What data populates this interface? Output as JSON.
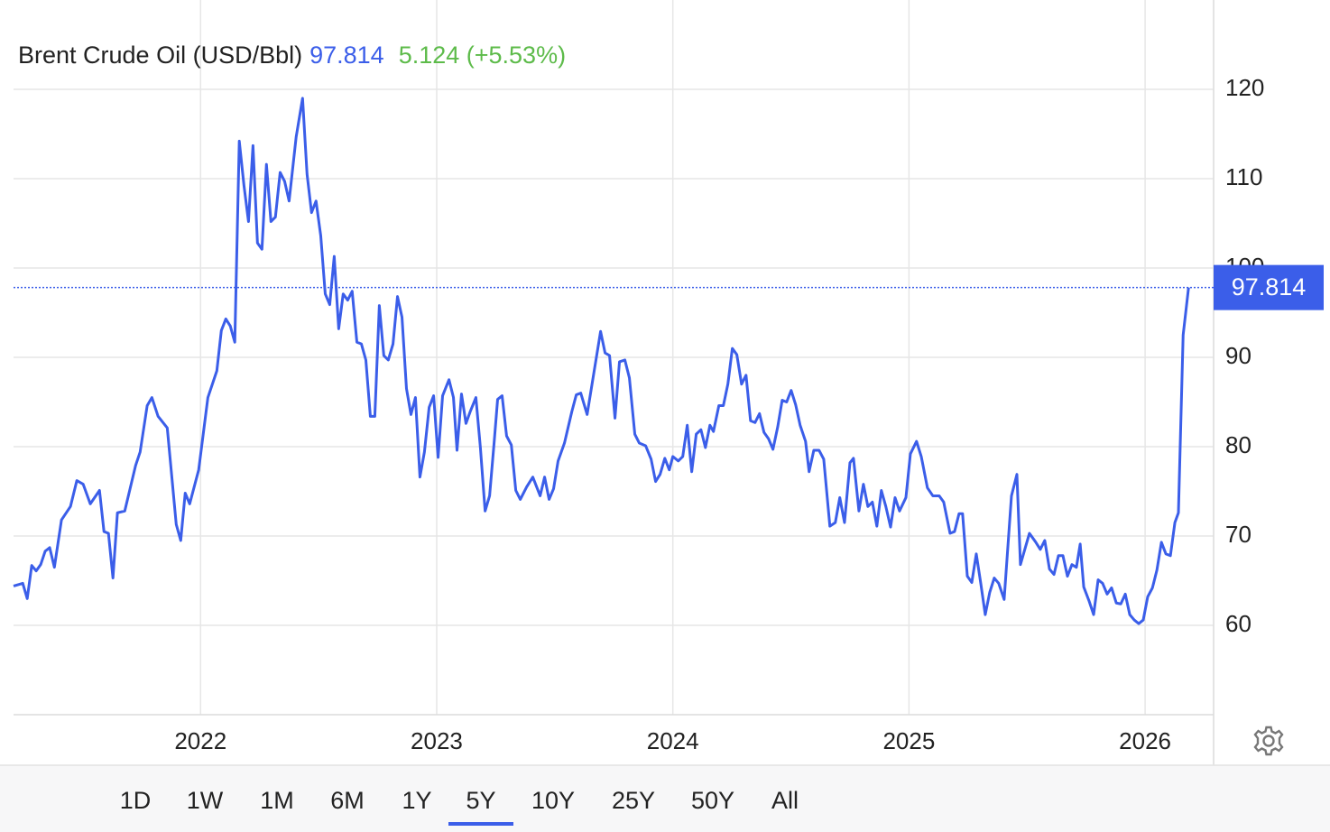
{
  "chart_data": {
    "type": "line",
    "title": "Brent Crude Oil (USD/Bbl)",
    "last_value": 97.814,
    "change": "5.124 (+5.53%)",
    "color": "#3b5ee9",
    "change_color": "#5dbb4a",
    "grid": true,
    "xlim": [
      2021.208,
      2026.29
    ],
    "xticks": [
      2022,
      2023,
      2024,
      2025,
      2026
    ],
    "ylim": [
      50,
      130
    ],
    "yticks": [
      60,
      70,
      80,
      90,
      100,
      110,
      120
    ],
    "ranges": [
      "1D",
      "1W",
      "1M",
      "6M",
      "1Y",
      "5Y",
      "10Y",
      "25Y",
      "50Y",
      "All"
    ],
    "selected_range": "5Y",
    "x": [
      2021.208,
      2021.247,
      2021.266,
      2021.285,
      2021.304,
      2021.323,
      2021.342,
      2021.361,
      2021.381,
      2021.411,
      2021.449,
      2021.476,
      2021.503,
      2021.533,
      2021.572,
      2021.591,
      2021.61,
      2021.629,
      2021.648,
      2021.679,
      2021.725,
      2021.744,
      2021.774,
      2021.794,
      2021.82,
      2021.859,
      2021.897,
      2021.916,
      2021.935,
      2021.954,
      2021.992,
      2022.031,
      2022.069,
      2022.088,
      2022.107,
      2022.126,
      2022.145,
      2022.164,
      2022.184,
      2022.203,
      2022.222,
      2022.241,
      2022.26,
      2022.279,
      2022.298,
      2022.317,
      2022.337,
      2022.356,
      2022.375,
      2022.405,
      2022.432,
      2022.451,
      2022.47,
      2022.489,
      2022.509,
      2022.528,
      2022.547,
      2022.566,
      2022.585,
      2022.604,
      2022.623,
      2022.642,
      2022.662,
      2022.681,
      2022.7,
      2022.719,
      2022.738,
      2022.757,
      2022.776,
      2022.795,
      2022.815,
      2022.834,
      2022.853,
      2022.872,
      2022.891,
      2022.91,
      2022.929,
      2022.948,
      2022.968,
      2022.987,
      2023.006,
      2023.025,
      2023.052,
      2023.071,
      2023.086,
      2023.105,
      2023.124,
      2023.143,
      2023.166,
      2023.185,
      2023.205,
      2023.224,
      2023.243,
      2023.258,
      2023.277,
      2023.296,
      2023.316,
      2023.335,
      2023.354,
      2023.381,
      2023.407,
      2023.438,
      2023.457,
      2023.476,
      2023.495,
      2023.514,
      2023.541,
      2023.572,
      2023.591,
      2023.61,
      2023.637,
      2023.667,
      2023.694,
      2023.713,
      2023.732,
      2023.755,
      2023.774,
      2023.797,
      2023.816,
      2023.839,
      2023.858,
      2023.885,
      2023.908,
      2023.927,
      2023.946,
      2023.966,
      2023.985,
      2024.0,
      2024.023,
      2024.042,
      2024.061,
      2024.08,
      2024.099,
      2024.119,
      2024.138,
      2024.157,
      2024.172,
      2024.195,
      2024.214,
      2024.233,
      2024.252,
      2024.271,
      2024.291,
      2024.31,
      2024.329,
      2024.348,
      2024.367,
      2024.386,
      2024.405,
      2024.424,
      2024.444,
      2024.463,
      2024.482,
      2024.501,
      2024.52,
      2024.539,
      2024.562,
      2024.577,
      2024.597,
      2024.619,
      2024.639,
      2024.665,
      2024.688,
      2024.707,
      2024.727,
      2024.75,
      2024.765,
      2024.788,
      2024.807,
      2024.826,
      2024.845,
      2024.864,
      2024.883,
      2024.902,
      2024.922,
      2024.941,
      2024.96,
      2024.987,
      2025.006,
      2025.032,
      2025.052,
      2025.078,
      2025.101,
      2025.128,
      2025.147,
      2025.174,
      2025.193,
      2025.212,
      2025.227,
      2025.247,
      2025.266,
      2025.285,
      2025.304,
      2025.323,
      2025.342,
      2025.361,
      2025.38,
      2025.403,
      2025.434,
      2025.457,
      2025.472,
      2025.51,
      2025.537,
      2025.556,
      2025.575,
      2025.595,
      2025.614,
      2025.633,
      2025.652,
      2025.671,
      2025.69,
      2025.709,
      2025.725,
      2025.74,
      2025.763,
      2025.782,
      2025.801,
      2025.82,
      2025.839,
      2025.858,
      2025.878,
      2025.897,
      2025.916,
      2025.935,
      2025.954,
      2025.973,
      2025.992,
      2026.011,
      2026.031,
      2026.05,
      2026.069,
      2026.088,
      2026.107,
      2026.126,
      2026.141,
      2026.161,
      2026.184
    ],
    "values": [
      64.4,
      64.7,
      63.0,
      66.7,
      66.1,
      66.8,
      68.3,
      68.7,
      66.5,
      71.8,
      73.3,
      76.2,
      75.8,
      73.6,
      75.1,
      70.5,
      70.3,
      65.3,
      72.6,
      72.8,
      77.9,
      79.4,
      84.6,
      85.5,
      83.4,
      82.1,
      71.3,
      69.5,
      74.8,
      73.6,
      77.4,
      85.5,
      88.5,
      93.0,
      94.3,
      93.5,
      91.7,
      114.2,
      109.2,
      105.2,
      113.7,
      102.8,
      102.1,
      111.6,
      105.2,
      105.7,
      110.7,
      109.7,
      107.5,
      114.7,
      119.0,
      110.5,
      106.2,
      107.5,
      103.6,
      97.1,
      95.9,
      101.3,
      93.2,
      97.1,
      96.4,
      97.4,
      91.7,
      91.5,
      89.7,
      83.4,
      83.4,
      95.8,
      90.2,
      89.7,
      91.5,
      96.8,
      94.5,
      86.5,
      83.6,
      85.5,
      76.6,
      79.4,
      84.4,
      85.7,
      78.8,
      85.7,
      87.5,
      85.5,
      79.6,
      85.9,
      82.6,
      84.0,
      85.5,
      79.9,
      72.8,
      74.5,
      80.4,
      85.3,
      85.7,
      81.2,
      80.2,
      75.1,
      74.1,
      75.5,
      76.6,
      74.5,
      76.6,
      74.1,
      75.3,
      78.4,
      80.4,
      83.9,
      85.8,
      86.0,
      83.6,
      88.5,
      92.9,
      90.5,
      90.2,
      83.2,
      89.5,
      89.7,
      87.7,
      81.4,
      80.4,
      80.1,
      78.6,
      76.1,
      76.9,
      78.7,
      77.4,
      78.9,
      78.4,
      78.9,
      82.4,
      77.2,
      81.4,
      81.9,
      79.9,
      82.4,
      81.7,
      84.6,
      84.6,
      87.0,
      91.0,
      90.3,
      87.0,
      88.0,
      82.9,
      82.7,
      83.7,
      81.6,
      80.9,
      79.7,
      82.2,
      85.2,
      85.0,
      86.3,
      84.7,
      82.4,
      80.6,
      77.2,
      79.6,
      79.6,
      78.6,
      71.1,
      71.5,
      74.3,
      71.5,
      78.2,
      78.7,
      72.8,
      75.8,
      73.3,
      73.8,
      71.1,
      75.1,
      73.3,
      71.0,
      74.3,
      72.8,
      74.3,
      79.2,
      80.6,
      78.9,
      75.4,
      74.5,
      74.5,
      73.8,
      70.3,
      70.5,
      72.5,
      72.5,
      65.5,
      64.8,
      68.0,
      64.7,
      61.2,
      63.7,
      65.3,
      64.7,
      62.9,
      74.5,
      76.9,
      66.8,
      70.3,
      69.3,
      68.5,
      69.5,
      66.3,
      65.7,
      67.8,
      67.8,
      65.5,
      66.8,
      66.5,
      69.1,
      64.3,
      62.7,
      61.2,
      65.1,
      64.7,
      63.5,
      64.2,
      62.5,
      62.4,
      63.5,
      61.2,
      60.6,
      60.2,
      60.6,
      63.2,
      64.2,
      66.2,
      69.3,
      68.0,
      67.8,
      71.5,
      72.6,
      92.5,
      97.814
    ]
  }
}
